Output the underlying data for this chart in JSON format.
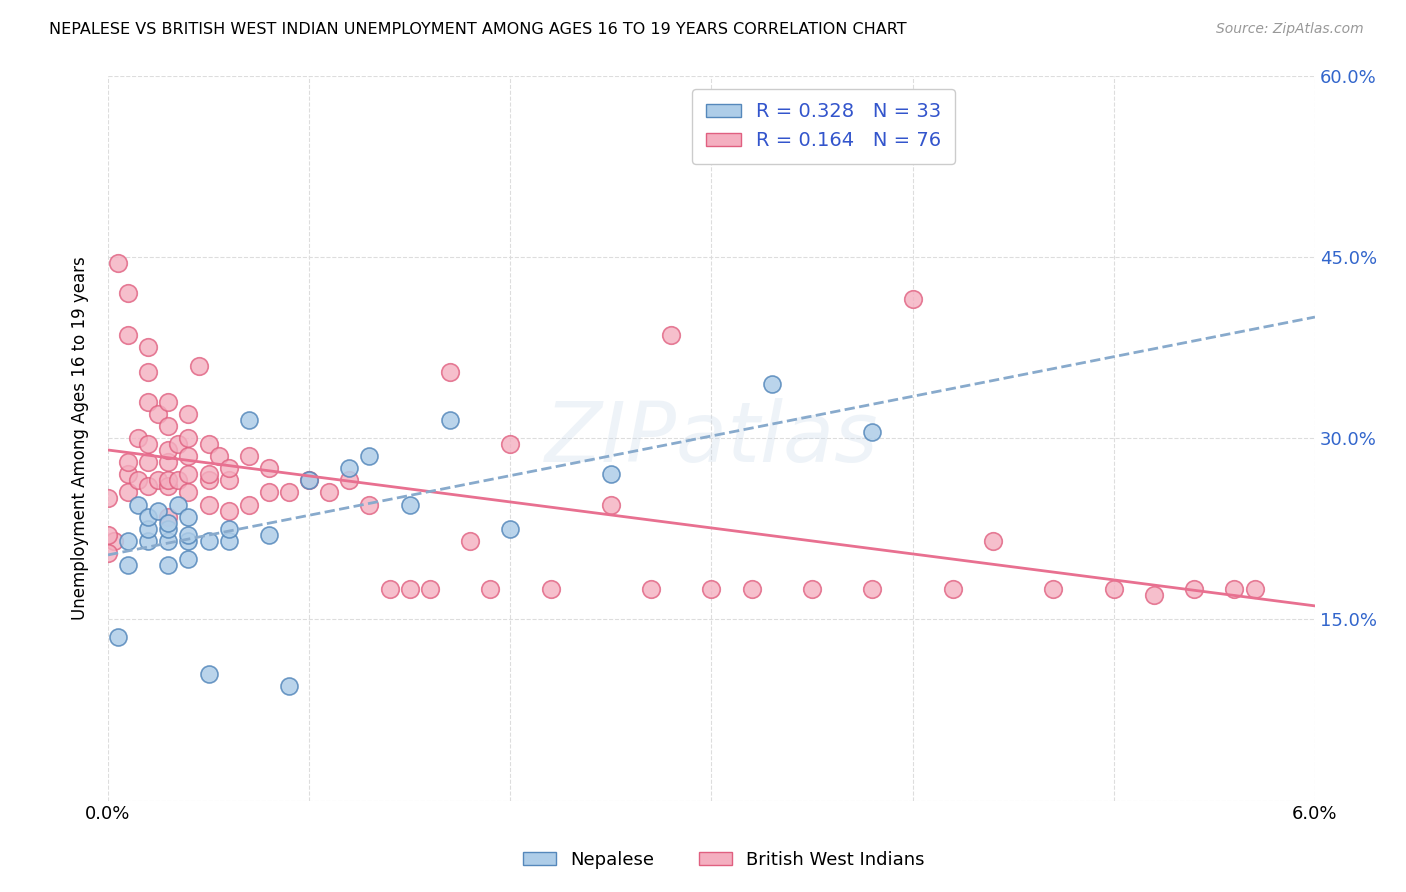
{
  "title": "NEPALESE VS BRITISH WEST INDIAN UNEMPLOYMENT AMONG AGES 16 TO 19 YEARS CORRELATION CHART",
  "source": "Source: ZipAtlas.com",
  "ylabel_left": "Unemployment Among Ages 16 to 19 years",
  "legend_label1": "R = 0.328   N = 33",
  "legend_label2": "R = 0.164   N = 76",
  "legend_xticklabel1": "Nepalese",
  "legend_xticklabel2": "British West Indians",
  "xlim": [
    0.0,
    0.06
  ],
  "ylim": [
    0.0,
    0.6
  ],
  "x_ticks": [
    0.0,
    0.01,
    0.02,
    0.03,
    0.04,
    0.05,
    0.06
  ],
  "x_tick_labels": [
    "0.0%",
    "",
    "",
    "",
    "",
    "",
    "6.0%"
  ],
  "y_ticks_right": [
    0.0,
    0.15,
    0.3,
    0.45,
    0.6
  ],
  "y_tick_labels_right": [
    "",
    "15.0%",
    "30.0%",
    "45.0%",
    "60.0%"
  ],
  "color_nepalese_fill": "#aecde8",
  "color_nepalese_edge": "#5588bb",
  "color_bwi_fill": "#f4afc0",
  "color_bwi_edge": "#e06080",
  "color_trend_nepalese": "#88aacc",
  "color_trend_bwi": "#e87090",
  "color_legend_text": "#3355cc",
  "background_color": "#ffffff",
  "grid_color": "#dddddd",
  "nepalese_x": [
    0.0005,
    0.001,
    0.001,
    0.0015,
    0.002,
    0.002,
    0.002,
    0.0025,
    0.003,
    0.003,
    0.003,
    0.003,
    0.0035,
    0.004,
    0.004,
    0.004,
    0.004,
    0.005,
    0.005,
    0.006,
    0.006,
    0.007,
    0.008,
    0.009,
    0.01,
    0.012,
    0.013,
    0.015,
    0.017,
    0.02,
    0.025,
    0.033,
    0.038
  ],
  "nepalese_y": [
    0.135,
    0.195,
    0.215,
    0.245,
    0.215,
    0.225,
    0.235,
    0.24,
    0.195,
    0.215,
    0.225,
    0.23,
    0.245,
    0.2,
    0.215,
    0.22,
    0.235,
    0.215,
    0.105,
    0.215,
    0.225,
    0.315,
    0.22,
    0.095,
    0.265,
    0.275,
    0.285,
    0.245,
    0.315,
    0.225,
    0.27,
    0.345,
    0.305
  ],
  "bwi_x": [
    0.0003,
    0.0005,
    0.001,
    0.001,
    0.001,
    0.001,
    0.001,
    0.0015,
    0.0015,
    0.002,
    0.002,
    0.002,
    0.002,
    0.002,
    0.002,
    0.0025,
    0.0025,
    0.003,
    0.003,
    0.003,
    0.003,
    0.003,
    0.003,
    0.003,
    0.0035,
    0.0035,
    0.004,
    0.004,
    0.004,
    0.004,
    0.004,
    0.0045,
    0.005,
    0.005,
    0.005,
    0.005,
    0.0055,
    0.006,
    0.006,
    0.006,
    0.007,
    0.007,
    0.008,
    0.008,
    0.009,
    0.01,
    0.011,
    0.012,
    0.013,
    0.014,
    0.015,
    0.016,
    0.017,
    0.018,
    0.019,
    0.02,
    0.022,
    0.025,
    0.027,
    0.028,
    0.03,
    0.032,
    0.035,
    0.038,
    0.04,
    0.042,
    0.044,
    0.047,
    0.05,
    0.052,
    0.054,
    0.056,
    0.057,
    0.0,
    0.0,
    0.0
  ],
  "bwi_y": [
    0.215,
    0.445,
    0.255,
    0.27,
    0.28,
    0.385,
    0.42,
    0.265,
    0.3,
    0.26,
    0.28,
    0.295,
    0.33,
    0.355,
    0.375,
    0.265,
    0.32,
    0.235,
    0.26,
    0.265,
    0.28,
    0.29,
    0.31,
    0.33,
    0.265,
    0.295,
    0.255,
    0.27,
    0.285,
    0.3,
    0.32,
    0.36,
    0.245,
    0.265,
    0.27,
    0.295,
    0.285,
    0.24,
    0.265,
    0.275,
    0.245,
    0.285,
    0.255,
    0.275,
    0.255,
    0.265,
    0.255,
    0.265,
    0.245,
    0.175,
    0.175,
    0.175,
    0.355,
    0.215,
    0.175,
    0.295,
    0.175,
    0.245,
    0.175,
    0.385,
    0.175,
    0.175,
    0.175,
    0.175,
    0.415,
    0.175,
    0.215,
    0.175,
    0.175,
    0.17,
    0.175,
    0.175,
    0.175,
    0.205,
    0.22,
    0.25
  ]
}
